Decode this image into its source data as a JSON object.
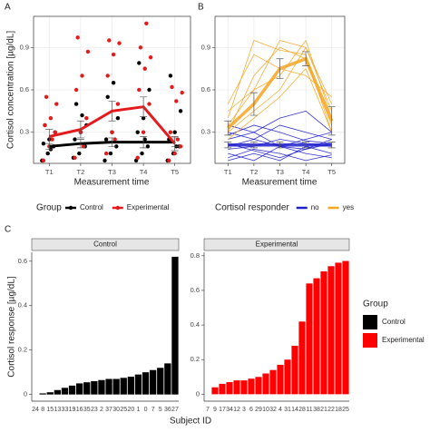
{
  "chart_data": [
    {
      "type": "line",
      "panel": "A",
      "ylabel": "Cortisol concentration [µg/dL]",
      "xlabel": "Measurement time",
      "categories": [
        "T1",
        "T2",
        "T3",
        "T4",
        "T5"
      ],
      "ylim": [
        0.08,
        1.12
      ],
      "yticks": [
        0.3,
        0.6,
        0.9
      ],
      "grid": true,
      "legend_title": "Group",
      "series": [
        {
          "name": "Control",
          "color": "#000000",
          "values": [
            0.2,
            0.22,
            0.23,
            0.23,
            0.23
          ],
          "errors": [
            0.02,
            0.03,
            0.03,
            0.04,
            0.03
          ],
          "points": [
            [
              0.1,
              0.15,
              0.2,
              0.22,
              0.25,
              0.3,
              0.35,
              0.18
            ],
            [
              0.12,
              0.15,
              0.2,
              0.25,
              0.3,
              0.35,
              0.5,
              0.42
            ],
            [
              0.1,
              0.15,
              0.2,
              0.25,
              0.3,
              0.4,
              0.55,
              0.65
            ],
            [
              0.1,
              0.15,
              0.2,
              0.3,
              0.4,
              0.6,
              0.79,
              0.25
            ],
            [
              0.1,
              0.15,
              0.2,
              0.25,
              0.3,
              0.45,
              0.7,
              0.2
            ]
          ]
        },
        {
          "name": "Experimental",
          "color": "#e41a1c",
          "values": [
            0.27,
            0.32,
            0.45,
            0.48,
            0.22
          ],
          "errors": [
            0.05,
            0.06,
            0.07,
            0.07,
            0.05
          ],
          "points": [
            [
              0.1,
              0.2,
              0.3,
              0.35,
              0.4,
              0.5,
              0.55,
              0.25
            ],
            [
              0.12,
              0.3,
              0.4,
              0.6,
              0.7,
              0.87,
              0.97,
              0.2
            ],
            [
              0.15,
              0.3,
              0.5,
              0.7,
              0.85,
              0.93,
              0.95,
              0.25
            ],
            [
              0.12,
              0.3,
              0.5,
              0.6,
              0.75,
              0.83,
              0.9,
              1.07
            ],
            [
              0.1,
              0.15,
              0.2,
              0.3,
              0.52,
              0.58,
              0.62,
              0.25
            ]
          ]
        }
      ]
    },
    {
      "type": "spaghetti",
      "panel": "B",
      "xlabel": "Measurement time",
      "categories": [
        "T1",
        "T2",
        "T3",
        "T4",
        "T5"
      ],
      "ylim": [
        0.08,
        1.12
      ],
      "yticks": [
        0.3,
        0.6,
        0.9
      ],
      "grid": true,
      "legend_title": "Cortisol responder",
      "groups": [
        {
          "name": "no",
          "color": "#1f1fcc",
          "mean": [
            0.21,
            0.21,
            0.21,
            0.21,
            0.21
          ],
          "errors": [
            0.02,
            0.02,
            0.02,
            0.02,
            0.02
          ],
          "subjects": [
            [
              0.2,
              0.25,
              0.2,
              0.18,
              0.22
            ],
            [
              0.15,
              0.1,
              0.2,
              0.15,
              0.12
            ],
            [
              0.3,
              0.25,
              0.35,
              0.3,
              0.25
            ],
            [
              0.1,
              0.15,
              0.1,
              0.2,
              0.15
            ],
            [
              0.25,
              0.3,
              0.2,
              0.25,
              0.3
            ],
            [
              0.18,
              0.2,
              0.25,
              0.22,
              0.2
            ],
            [
              0.12,
              0.18,
              0.15,
              0.1,
              0.14
            ],
            [
              0.35,
              0.3,
              0.4,
              0.45,
              0.3
            ],
            [
              0.22,
              0.17,
              0.12,
              0.18,
              0.25
            ],
            [
              0.28,
              0.35,
              0.3,
              0.24,
              0.22
            ]
          ]
        },
        {
          "name": "yes",
          "color": "#f5a623",
          "mean": [
            0.33,
            0.5,
            0.75,
            0.82,
            0.38
          ],
          "errors": [
            0.05,
            0.08,
            0.07,
            0.05,
            0.1
          ],
          "subjects": [
            [
              0.35,
              0.6,
              0.95,
              0.9,
              0.45
            ],
            [
              0.4,
              0.95,
              0.88,
              0.85,
              0.3
            ],
            [
              0.3,
              0.7,
              0.9,
              0.82,
              0.35
            ],
            [
              0.45,
              0.6,
              0.7,
              0.95,
              0.4
            ],
            [
              0.25,
              0.4,
              0.55,
              0.75,
              0.3
            ],
            [
              0.5,
              0.85,
              0.75,
              0.7,
              0.55
            ],
            [
              0.3,
              0.45,
              0.6,
              0.9,
              0.5
            ]
          ]
        }
      ]
    },
    {
      "type": "bar",
      "panel": "C",
      "title": "Control",
      "color": "#000000",
      "ylabel": "Cortisol response [µg/dL]",
      "xlabel": "Subject ID",
      "categories": [
        "24",
        "8",
        "15",
        "13",
        "33",
        "19",
        "16",
        "35",
        "23",
        "2",
        "37",
        "30",
        "25",
        "20",
        "1",
        "0",
        "7",
        "5",
        "36",
        "27"
      ],
      "values": [
        0.0,
        0.005,
        0.01,
        0.02,
        0.03,
        0.04,
        0.05,
        0.055,
        0.06,
        0.065,
        0.07,
        0.07,
        0.075,
        0.08,
        0.09,
        0.1,
        0.11,
        0.12,
        0.14,
        0.62
      ],
      "ylim": [
        -0.03,
        0.64
      ],
      "yticks": [
        0,
        0.2,
        0.4,
        0.6
      ],
      "grid": false
    },
    {
      "type": "bar",
      "title": "Experimental",
      "color": "#ff0000",
      "legend_title": "Group",
      "categories": [
        "7",
        "9",
        "17",
        "34",
        "12",
        "3",
        "6",
        "29",
        "10",
        "32",
        "4",
        "31",
        "14",
        "28",
        "11",
        "38",
        "21",
        "22",
        "18",
        "25"
      ],
      "values": [
        0.0,
        0.04,
        0.06,
        0.07,
        0.08,
        0.08,
        0.09,
        0.1,
        0.12,
        0.14,
        0.17,
        0.2,
        0.28,
        0.42,
        0.64,
        0.67,
        0.71,
        0.74,
        0.76,
        0.77
      ],
      "ylim": [
        -0.04,
        0.82
      ],
      "yticks": [
        0,
        0.2,
        0.4,
        0.6,
        0.8
      ],
      "grid": false
    }
  ]
}
